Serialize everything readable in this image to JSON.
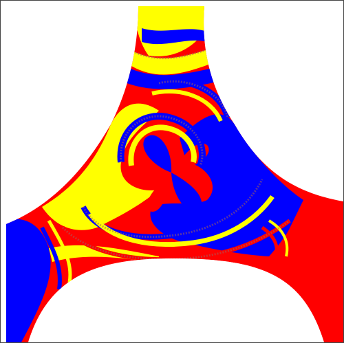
{
  "figure": {
    "description_visible_text": "",
    "colors": {
      "basin_a": "#ff0000",
      "basin_b": "#0000ff",
      "basin_c": "#ffff00",
      "boundary_mix": "#a06060",
      "background": "#ffffff",
      "frame": "#444444"
    }
  }
}
